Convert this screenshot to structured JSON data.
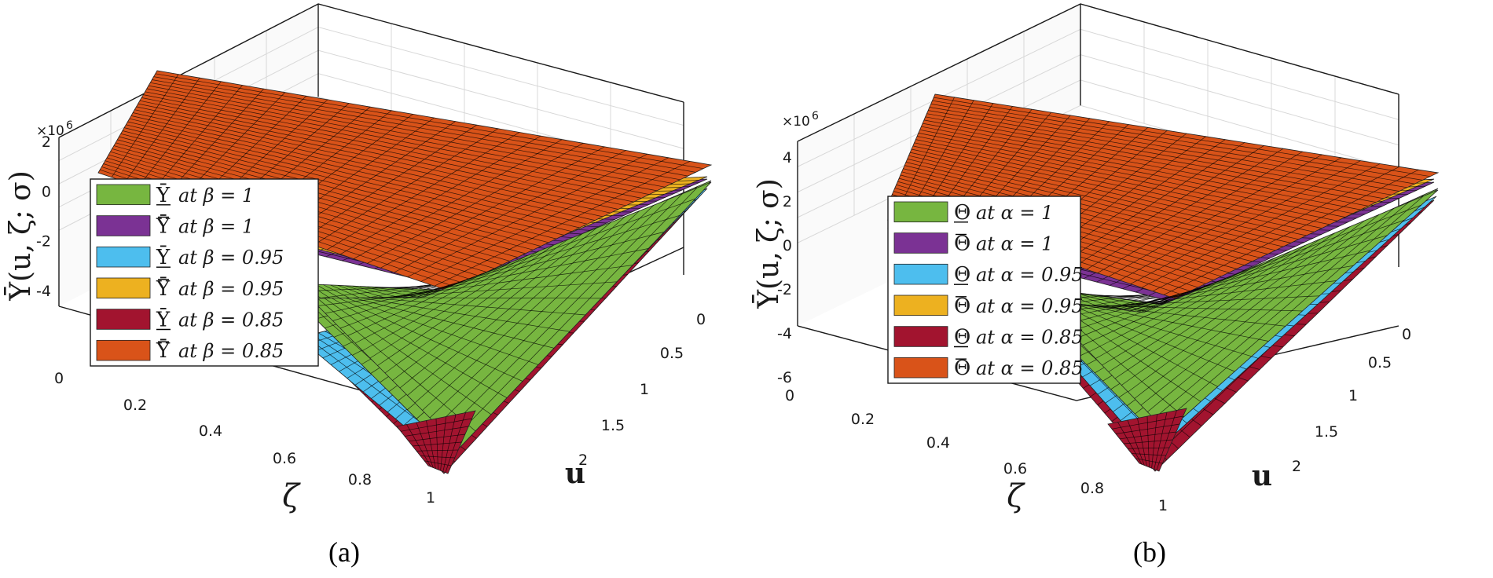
{
  "chart_data": [
    {
      "type": "surface3d",
      "panel_label": "(a)",
      "zlabel": "Ῡ(u, ζ; σ)",
      "xlabel": "ζ",
      "ylabel": "u",
      "z_multiplier": "×10",
      "z_multiplier_exp": "6",
      "zlim": [
        -4,
        2
      ],
      "z_ticks": [
        "2",
        "0",
        "-2",
        "-4"
      ],
      "x_range": [
        0,
        1
      ],
      "x_ticks": [
        "0",
        "0.2",
        "0.4",
        "0.6",
        "0.8",
        "1"
      ],
      "y_range": [
        0,
        2
      ],
      "y_ticks": [
        "0",
        "0.5",
        "1",
        "1.5",
        "2"
      ],
      "series": [
        {
          "sym": "Ῡ",
          "bar": "under",
          "rest": "at β = 1",
          "color": "#77b640"
        },
        {
          "sym": "Ῡ",
          "bar": "over",
          "rest": "at β = 1",
          "color": "#7b3294"
        },
        {
          "sym": "Ῡ",
          "bar": "under",
          "rest": "at β = 0.95",
          "color": "#4dbeee"
        },
        {
          "sym": "Ῡ",
          "bar": "over",
          "rest": "at β = 0.95",
          "color": "#edb120"
        },
        {
          "sym": "Ῡ",
          "bar": "under",
          "rest": "at β = 0.85",
          "color": "#a2142f"
        },
        {
          "sym": "Ῡ",
          "bar": "over",
          "rest": "at β = 0.85",
          "color": "#d95319"
        }
      ]
    },
    {
      "type": "surface3d",
      "panel_label": "(b)",
      "zlabel": "Ῡ(u, ζ; σ)",
      "xlabel": "ζ",
      "ylabel": "u",
      "z_multiplier": "×10",
      "z_multiplier_exp": "6",
      "zlim": [
        -6,
        4
      ],
      "z_ticks": [
        "4",
        "2",
        "0",
        "-2",
        "-4",
        "-6"
      ],
      "x_range": [
        0,
        1
      ],
      "x_ticks": [
        "0",
        "0.2",
        "0.4",
        "0.6",
        "0.8",
        "1"
      ],
      "y_range": [
        0,
        2
      ],
      "y_ticks": [
        "0",
        "0.5",
        "1",
        "1.5",
        "2"
      ],
      "series": [
        {
          "sym": "Θ",
          "bar": "under",
          "rest": "at α = 1",
          "color": "#77b640"
        },
        {
          "sym": "Θ",
          "bar": "over",
          "rest": "at α = 1",
          "color": "#7b3294"
        },
        {
          "sym": "Θ",
          "bar": "under",
          "rest": "at α = 0.95",
          "color": "#4dbeee"
        },
        {
          "sym": "Θ",
          "bar": "over",
          "rest": "at α = 0.95",
          "color": "#edb120"
        },
        {
          "sym": "Θ",
          "bar": "under",
          "rest": "at α = 0.85",
          "color": "#a2142f"
        },
        {
          "sym": "Θ",
          "bar": "over",
          "rest": "at α = 0.85",
          "color": "#d95319"
        }
      ]
    }
  ]
}
